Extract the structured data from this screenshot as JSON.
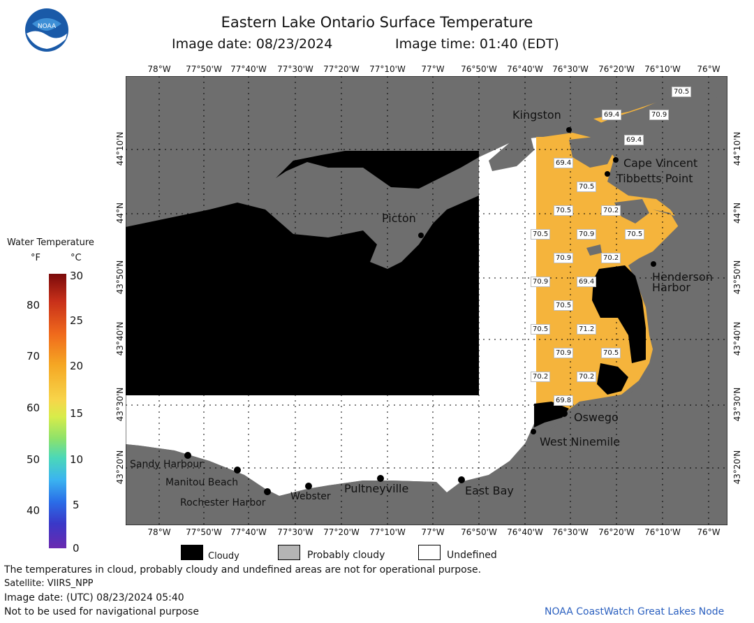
{
  "header": {
    "title": "Eastern Lake Ontario Surface Temperature",
    "image_date": "Image date: 08/23/2024",
    "image_time": "Image time: 01:40 (EDT)"
  },
  "map": {
    "lon_labels": [
      "78°W",
      "77°50'W",
      "77°40'W",
      "77°30'W",
      "77°20'W",
      "77°10'W",
      "77°W",
      "76°50'W",
      "76°40'W",
      "76°30'W",
      "76°20'W",
      "76°10'W",
      "76°W"
    ],
    "lat_labels": [
      "44°10'N",
      "44°N",
      "43°50'N",
      "43°40'N",
      "43°30'N",
      "43°20'N"
    ],
    "places": [
      {
        "name": "Kingston"
      },
      {
        "name": "Cape Vincent"
      },
      {
        "name": "Tibbetts Point"
      },
      {
        "name": "Picton"
      },
      {
        "name": "Henderson"
      },
      {
        "name": "Harbor"
      },
      {
        "name": "Oswego"
      },
      {
        "name": "West Ninemile"
      },
      {
        "name": "Sandy Harbour"
      },
      {
        "name": "Manitou Beach"
      },
      {
        "name": "Rochester Harbor"
      },
      {
        "name": "Webster"
      },
      {
        "name": "Pultneyville"
      },
      {
        "name": "East Bay"
      }
    ],
    "temps": [
      "70.5",
      "69.4",
      "70.9",
      "69.4",
      "69.4",
      "70.5",
      "70.5",
      "70.2",
      "70.5",
      "70.9",
      "70.5",
      "70.9",
      "70.2",
      "70.9",
      "69.4",
      "70.5",
      "70.5",
      "71.2",
      "70.9",
      "70.5",
      "70.2",
      "70.2",
      "69.8"
    ]
  },
  "legend": {
    "title": "Water Temperature",
    "unit_f": "°F",
    "unit_c": "°C",
    "f_ticks": [
      "80",
      "70",
      "60",
      "50",
      "40"
    ],
    "c_ticks": [
      "30",
      "25",
      "20",
      "15",
      "10",
      "5",
      "0"
    ],
    "cloudy": "Cloudy",
    "probably_cloudy": "Probably cloudy",
    "undefined": "Undefined",
    "colors": {
      "cloudy": "#000000",
      "probably_cloudy": "#b4b4b4",
      "undefined": "#ffffff",
      "land": "#6e6e6e",
      "water_temp": "#f5b43c"
    }
  },
  "footer": {
    "disclaimer": "The temperatures in cloud, probably cloudy and undefined areas are not for operational purpose.",
    "satellite": "Satellite: VIIRS_NPP",
    "utc_date": "Image date: (UTC) 08/23/2024  05:40",
    "nav_warning": "Not to be used for navigational purpose",
    "credit": "NOAA CoastWatch Great Lakes Node"
  }
}
